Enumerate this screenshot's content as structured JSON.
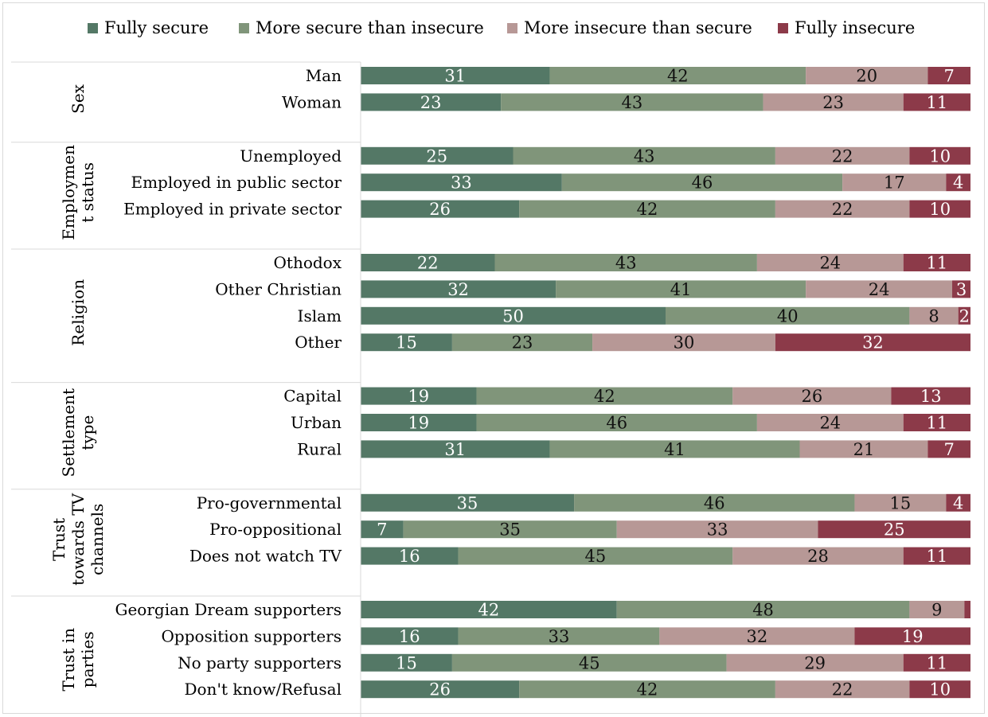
{
  "colors": {
    "fully_secure": "#547866",
    "more_secure": "#80957A",
    "more_insecure": "#B79896",
    "fully_insecure": "#8C3A49",
    "separator": "#d9d9d9"
  },
  "chart_data": {
    "type": "bar",
    "orientation": "horizontal",
    "stacked": true,
    "normalized": true,
    "legend_position": "top",
    "series": [
      {
        "name": "Fully secure"
      },
      {
        "name": "More secure than insecure"
      },
      {
        "name": "More insecure than secure"
      },
      {
        "name": "Fully insecure"
      }
    ],
    "groups": [
      {
        "label": "Sex",
        "label_lines": [
          "Sex"
        ],
        "rows": [
          {
            "label": "Man",
            "values": [
              31,
              42,
              20,
              7
            ]
          },
          {
            "label": "Woman",
            "values": [
              23,
              43,
              23,
              11
            ]
          }
        ]
      },
      {
        "label": "Employment status",
        "label_lines": [
          "Employmen",
          "t status"
        ],
        "rows": [
          {
            "label": "Unemployed",
            "values": [
              25,
              43,
              22,
              10
            ]
          },
          {
            "label": "Employed in public sector",
            "values": [
              33,
              46,
              17,
              4
            ]
          },
          {
            "label": "Employed in private sector",
            "values": [
              26,
              42,
              22,
              10
            ]
          }
        ]
      },
      {
        "label": "Religion",
        "label_lines": [
          "Religion"
        ],
        "rows": [
          {
            "label": "Othodox",
            "values": [
              22,
              43,
              24,
              11
            ]
          },
          {
            "label": "Other Christian",
            "values": [
              32,
              41,
              24,
              3
            ]
          },
          {
            "label": "Islam",
            "values": [
              50,
              40,
              8,
              2
            ]
          },
          {
            "label": "Other",
            "values": [
              15,
              23,
              30,
              32
            ]
          }
        ]
      },
      {
        "label": "Settlement type",
        "label_lines": [
          "Settlement",
          "type"
        ],
        "rows": [
          {
            "label": "Capital",
            "values": [
              19,
              42,
              26,
              13
            ]
          },
          {
            "label": "Urban",
            "values": [
              19,
              46,
              24,
              11
            ]
          },
          {
            "label": "Rural",
            "values": [
              31,
              41,
              21,
              7
            ]
          }
        ]
      },
      {
        "label": "Trust towards TV channels",
        "label_lines": [
          "Trust",
          "towards TV",
          "channels"
        ],
        "rows": [
          {
            "label": "Pro-governmental",
            "values": [
              35,
              46,
              15,
              4
            ]
          },
          {
            "label": "Pro-oppositional",
            "values": [
              7,
              35,
              33,
              25
            ]
          },
          {
            "label": "Does not watch TV",
            "values": [
              16,
              45,
              28,
              11
            ]
          }
        ]
      },
      {
        "label": "Trust in parties",
        "label_lines": [
          "Trust in",
          "parties"
        ],
        "rows": [
          {
            "label": "Georgian Dream supporters",
            "values": [
              42,
              48,
              9,
              1
            ],
            "hidden_labels": [
              false,
              false,
              false,
              true
            ]
          },
          {
            "label": "Opposition supporters",
            "values": [
              16,
              33,
              32,
              19
            ]
          },
          {
            "label": "No party supporters",
            "values": [
              15,
              45,
              29,
              11
            ]
          },
          {
            "label": "Don't know/Refusal",
            "values": [
              26,
              42,
              22,
              10
            ]
          }
        ]
      }
    ]
  }
}
